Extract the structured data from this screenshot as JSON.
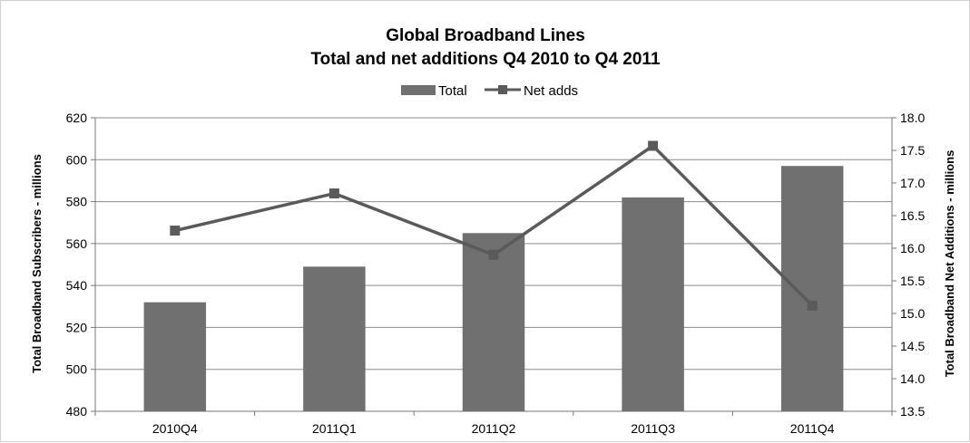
{
  "chart_data": {
    "type": "bar",
    "title": "Global Broadband Lines",
    "subtitle": "Total and net additions Q4 2010 to Q4 2011",
    "categories": [
      "2010Q4",
      "2011Q1",
      "2011Q2",
      "2011Q3",
      "2011Q4"
    ],
    "series": [
      {
        "name": "Total",
        "type": "bar",
        "axis": "left",
        "values": [
          532,
          549,
          565,
          582,
          597
        ]
      },
      {
        "name": "Net adds",
        "type": "line",
        "axis": "right",
        "values": [
          16.27,
          16.84,
          15.9,
          17.57,
          15.12
        ]
      }
    ],
    "ylabel": "Total Broadband Subscribers - millions",
    "y2label": "Total Broadband Net Additions - millions",
    "ylim": [
      480,
      620
    ],
    "y2lim": [
      13.5,
      18.0
    ],
    "yticks": [
      "480",
      "500",
      "520",
      "540",
      "560",
      "580",
      "600",
      "620"
    ],
    "y2ticks": [
      "13.5",
      "14.0",
      "14.5",
      "15.0",
      "15.5",
      "16.0",
      "16.5",
      "17.0",
      "17.5",
      "18.0"
    ],
    "grid": true,
    "legend_position": "top",
    "colors": {
      "bar": "#707070",
      "line": "#5a5a5a",
      "grid": "#8c8c8c"
    }
  }
}
